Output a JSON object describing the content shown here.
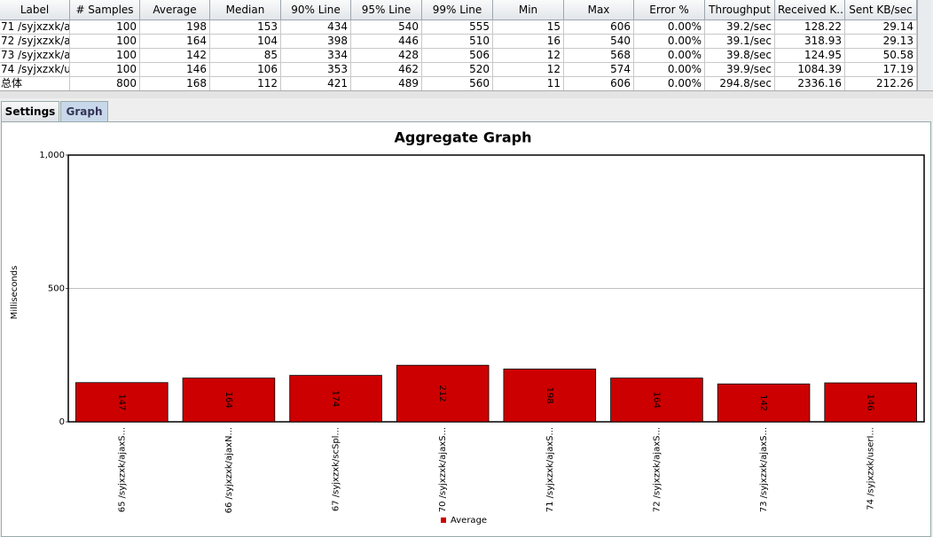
{
  "table": {
    "headers": [
      "Label",
      "# Samples",
      "Average",
      "Median",
      "90% Line",
      "95% Line",
      "99% Line",
      "Min",
      "Max",
      "Error %",
      "Throughput",
      "Received K...",
      "Sent KB/sec"
    ],
    "rows": [
      [
        "71 /syjxzxk/a...",
        "100",
        "198",
        "153",
        "434",
        "540",
        "555",
        "15",
        "606",
        "0.00%",
        "39.2/sec",
        "128.22",
        "29.14"
      ],
      [
        "72 /syjxzxk/a...",
        "100",
        "164",
        "104",
        "398",
        "446",
        "510",
        "16",
        "540",
        "0.00%",
        "39.1/sec",
        "318.93",
        "29.13"
      ],
      [
        "73 /syjxzxk/a...",
        "100",
        "142",
        "85",
        "334",
        "428",
        "506",
        "12",
        "568",
        "0.00%",
        "39.8/sec",
        "124.95",
        "50.58"
      ],
      [
        "74 /syjxzxk/u...",
        "100",
        "146",
        "106",
        "353",
        "462",
        "520",
        "12",
        "574",
        "0.00%",
        "39.9/sec",
        "1084.39",
        "17.19"
      ],
      [
        "总体",
        "800",
        "168",
        "112",
        "421",
        "489",
        "560",
        "11",
        "606",
        "0.00%",
        "294.8/sec",
        "2336.16",
        "212.26"
      ]
    ]
  },
  "tabs": [
    "Settings",
    "Graph"
  ],
  "chart_data": {
    "type": "bar",
    "title": "Aggregate Graph",
    "y_label": "Milliseconds",
    "categories": [
      "65 /syjxzxk/ajaxS...",
      "66 /syjxzxk/ajaxN...",
      "67 /syjxzxk/scSpl...",
      "70 /syjxzxk/ajaxS...",
      "71 /syjxzxk/ajaxS...",
      "72 /syjxzxk/ajaxS...",
      "73 /syjxzxk/ajaxS...",
      "74 /syjxzxk/userI..."
    ],
    "series": [
      {
        "name": "Average",
        "color": "#cc0000",
        "values": [
          147,
          164,
          174,
          212,
          198,
          164,
          142,
          146
        ]
      }
    ],
    "ylim": [
      0,
      1000
    ],
    "yticks": [
      0,
      500,
      {
        "value": 1000,
        "label": "1,000"
      }
    ],
    "grid": true
  }
}
